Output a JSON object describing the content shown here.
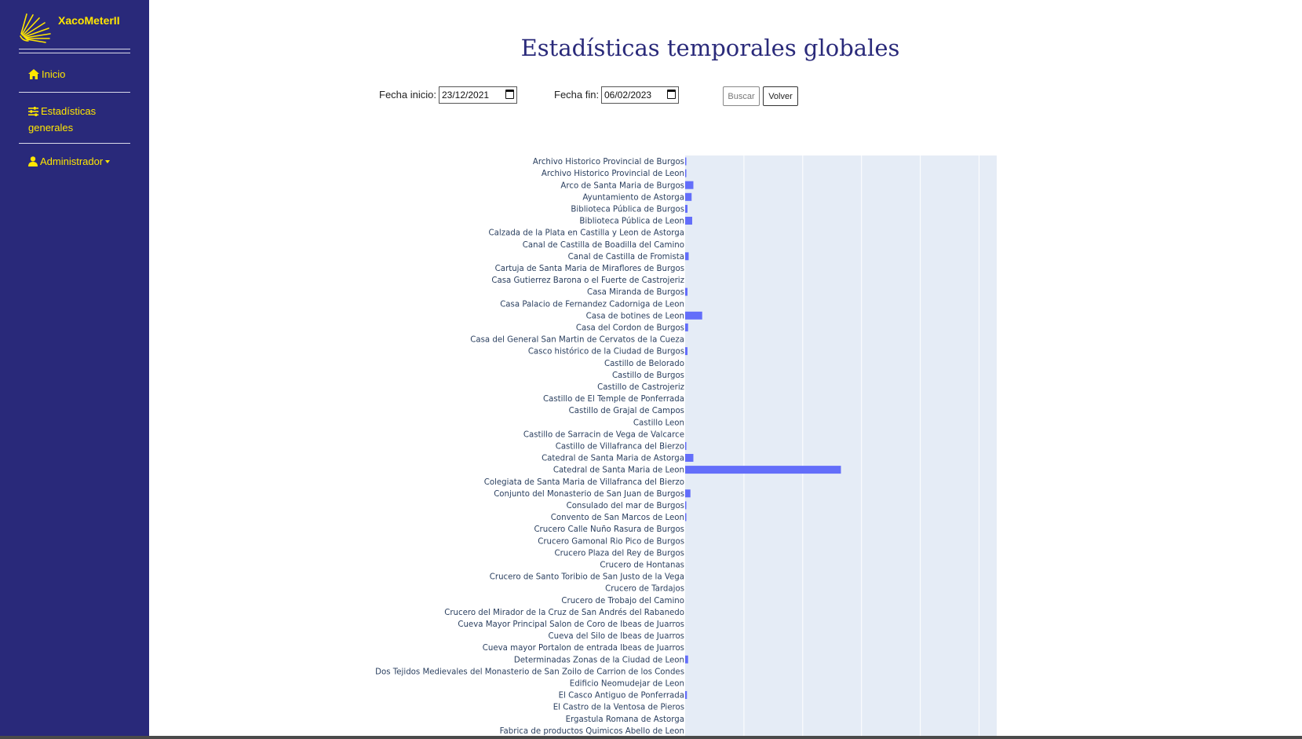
{
  "app": {
    "brand": "XacoMeterII"
  },
  "sidebar": {
    "items": [
      {
        "label": "Inicio",
        "icon": "home-icon"
      },
      {
        "label": "Estadísticas generales",
        "line1": "Estadísticas",
        "line2": "generales",
        "icon": "sliders-icon"
      },
      {
        "label": "Administrador",
        "icon": "user-icon"
      }
    ]
  },
  "page": {
    "title": "Estadísticas temporales globales"
  },
  "filters": {
    "start_label": "Fecha inicio:",
    "start_value": "23/12/2021",
    "end_label": "Fecha fin:",
    "end_value": "06/02/2023",
    "search_label": "Buscar",
    "back_label": "Volver"
  },
  "colors": {
    "sidebar": "#29297a",
    "accent": "#ffe600",
    "bar": "#636efa",
    "plot_bg": "#e5ecf6"
  },
  "chart_data": {
    "type": "bar",
    "orientation": "horizontal",
    "grid": true,
    "categories": [
      "Archivo Historico Provincial de Burgos",
      "Archivo Historico Provincial de Leon",
      "Arco de Santa Maria de Burgos",
      "Ayuntamiento de Astorga",
      "Biblioteca Pública de Burgos",
      "Biblioteca Pública de Leon",
      "Calzada de la Plata en Castilla y Leon de Astorga",
      "Canal de Castilla de Boadilla del Camino",
      "Canal de Castilla de Fromista",
      "Cartuja de Santa Maria de Miraflores de Burgos",
      "Casa Gutierrez Barona o el Fuerte de Castrojeriz",
      "Casa Miranda de Burgos",
      "Casa Palacio de Fernandez Cadorniga de Leon",
      "Casa de botines de Leon",
      "Casa del Cordon de Burgos",
      "Casa del General San Martin de Cervatos de la Cueza",
      "Casco histórico de la Ciudad de Burgos",
      "Castillo de Belorado",
      "Castillo de Burgos",
      "Castillo de Castrojeriz",
      "Castillo de El Temple de Ponferrada",
      "Castillo de Grajal de Campos",
      "Castillo Leon",
      "Castillo de Sarracin de Vega de Valcarce",
      "Castillo de Villafranca del Bierzo",
      "Catedral de Santa Maria de Astorga",
      "Catedral de Santa Maria de Leon",
      "Colegiata de Santa Maria de Villafranca del Bierzo",
      "Conjunto del Monasterio de San Juan de Burgos",
      "Consulado del mar de Burgos",
      "Convento de San Marcos de Leon",
      "Crucero Calle Nuño Rasura de Burgos",
      "Crucero Gamonal Rio Pico de Burgos",
      "Crucero Plaza del Rey de Burgos",
      "Crucero de Hontanas",
      "Crucero de Santo Toribio de San Justo de la Vega",
      "Crucero de Tardajos",
      "Crucero de Trobajo del Camino",
      "Crucero del Mirador de la Cruz de San Andrés del Rabanedo",
      "Cueva Mayor Principal Salon de Coro de Ibeas de Juarros",
      "Cueva del Silo de Ibeas de Juarros",
      "Cueva mayor Portalon de entrada Ibeas de Juarros",
      "Determinadas Zonas de la Ciudad de Leon",
      "Dos Tejidos Medievales del Monasterio de San Zoilo de Carrion de los Condes",
      "Edificio Neomudejar de Leon",
      "El Casco Antiguo de Ponferrada",
      "El Castro de la Ventosa de Pieros",
      "Ergastula Romana de Astorga",
      "Fabrica de productos Quimicos Abello de Leon"
    ],
    "values": [
      0.2,
      0.2,
      1.4,
      1.1,
      0.4,
      1.2,
      0,
      0,
      0.6,
      0,
      0,
      0.4,
      0,
      2.9,
      0.5,
      0,
      0.4,
      0,
      0,
      0,
      0,
      0,
      0,
      0,
      0.2,
      1.4,
      26.5,
      0,
      0.9,
      0.2,
      0.2,
      0,
      0,
      0,
      0,
      0,
      0,
      0,
      0,
      0,
      0,
      0,
      0.5,
      0,
      0,
      0.3,
      0,
      0,
      0
    ],
    "xlim": [
      0,
      53
    ],
    "xticks": [
      0,
      10,
      20,
      30,
      40,
      50
    ]
  }
}
